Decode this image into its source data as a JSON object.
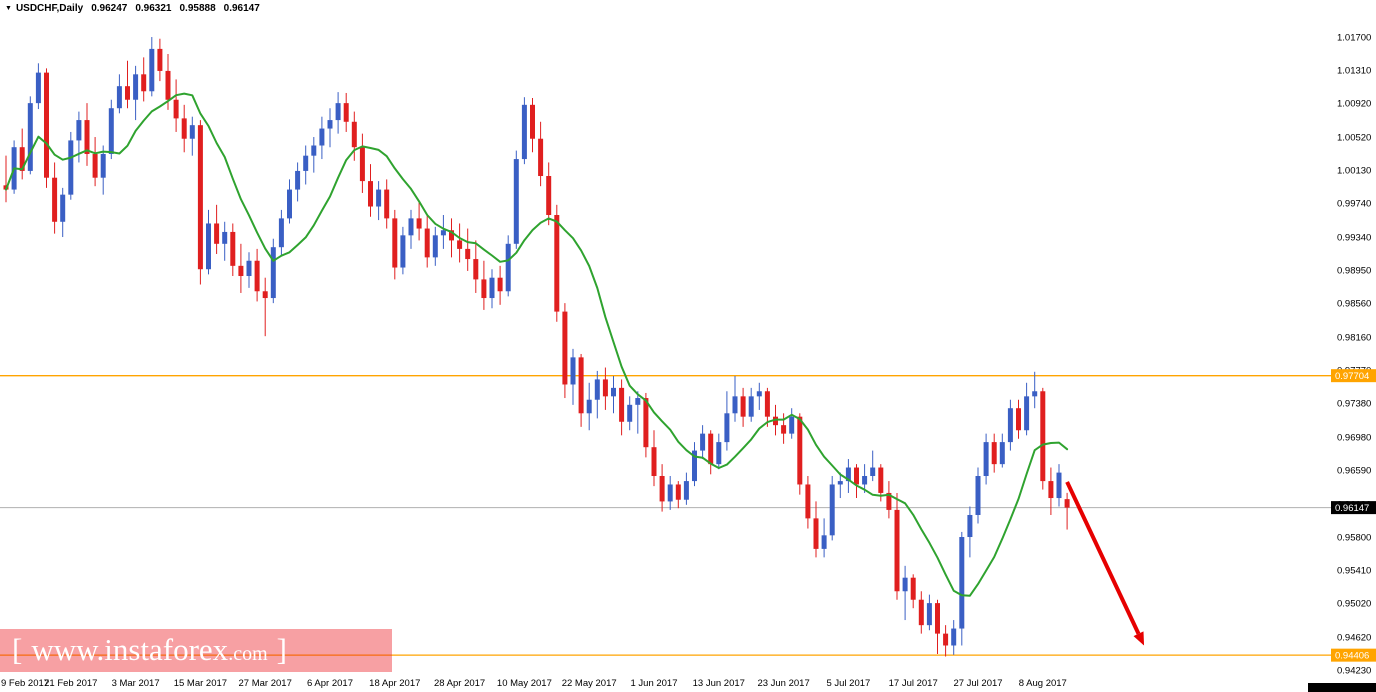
{
  "header": {
    "marker": "▼",
    "instrument": "USDCHF,Daily",
    "open": "0.96247",
    "high": "0.96321",
    "low": "0.95888",
    "close": "0.96147"
  },
  "watermark": {
    "bracket_left": "[",
    "main": "www.instaforex",
    "suffix": ".com",
    "bracket_right": "]"
  },
  "colors": {
    "up_candle": "#3A5FC4",
    "down_candle": "#E01F1F",
    "ma_line": "#2FA32F",
    "h_line": "#FFA400",
    "current_price_line": "#B0B0B0",
    "current_price_tag_bg": "#000000",
    "tag_text": "#FFFFFF",
    "axis_text": "#000000",
    "arrow": "#E60000",
    "watermark_bg": "rgba(237,28,36,0.42)"
  },
  "chart_data": {
    "type": "candlestick",
    "title": "USDCHF Daily",
    "symbol": "USDCHF",
    "timeframe": "Daily",
    "grid": "off",
    "legend": "none",
    "y_range": [
      0.9416,
      1.02137
    ],
    "y_ticks": [
      "1.01700",
      "1.01310",
      "1.00920",
      "1.00520",
      "1.00130",
      "0.99740",
      "0.99340",
      "0.98950",
      "0.98560",
      "0.98160",
      "0.97770",
      "0.97380",
      "0.96980",
      "0.96590",
      "0.96190",
      "0.95800",
      "0.95410",
      "0.95020",
      "0.94620",
      "0.94230"
    ],
    "x_ticks": [
      {
        "label": "9 Feb 2017",
        "i": 0
      },
      {
        "label": "21 Feb 2017",
        "i": 8
      },
      {
        "label": "3 Mar 2017",
        "i": 16
      },
      {
        "label": "15 Mar 2017",
        "i": 24
      },
      {
        "label": "27 Mar 2017",
        "i": 32
      },
      {
        "label": "6 Apr 2017",
        "i": 40
      },
      {
        "label": "18 Apr 2017",
        "i": 48
      },
      {
        "label": "28 Apr 2017",
        "i": 56
      },
      {
        "label": "10 May 2017",
        "i": 64
      },
      {
        "label": "22 May 2017",
        "i": 72
      },
      {
        "label": "1 Jun 2017",
        "i": 80
      },
      {
        "label": "13 Jun 2017",
        "i": 88
      },
      {
        "label": "23 Jun 2017",
        "i": 96
      },
      {
        "label": "5 Jul 2017",
        "i": 104
      },
      {
        "label": "17 Jul 2017",
        "i": 112
      },
      {
        "label": "27 Jul 2017",
        "i": 120
      },
      {
        "label": "8 Aug 2017",
        "i": 128
      }
    ],
    "candles": [
      [
        0.9995,
        1.003,
        0.9975,
        0.999
      ],
      [
        0.999,
        1.0048,
        0.9985,
        1.004
      ],
      [
        1.004,
        1.0062,
        1.0002,
        1.0012
      ],
      [
        1.0012,
        1.01,
        1.0008,
        1.0092
      ],
      [
        1.0092,
        1.0139,
        1.0085,
        1.0128
      ],
      [
        1.0128,
        1.0133,
        0.9992,
        1.0004
      ],
      [
        1.0004,
        1.0022,
        0.9938,
        0.9952
      ],
      [
        0.9952,
        0.9992,
        0.9934,
        0.9984
      ],
      [
        0.9984,
        1.0058,
        0.9978,
        1.0048
      ],
      [
        1.0048,
        1.0082,
        1.0022,
        1.0072
      ],
      [
        1.0072,
        1.0092,
        1.0018,
        1.0032
      ],
      [
        1.0032,
        1.0052,
        0.9994,
        1.0004
      ],
      [
        1.0004,
        1.0042,
        0.9984,
        1.0032
      ],
      [
        1.0032,
        1.0096,
        1.0026,
        1.0086
      ],
      [
        1.0086,
        1.0126,
        1.008,
        1.0112
      ],
      [
        1.0112,
        1.0142,
        1.0086,
        1.0096
      ],
      [
        1.0096,
        1.0136,
        1.0072,
        1.0126
      ],
      [
        1.0126,
        1.0146,
        1.0094,
        1.0106
      ],
      [
        1.0106,
        1.017,
        1.01,
        1.0156
      ],
      [
        1.0156,
        1.0168,
        1.0118,
        1.013
      ],
      [
        1.013,
        1.015,
        1.0084,
        1.0096
      ],
      [
        1.0096,
        1.012,
        1.0058,
        1.0074
      ],
      [
        1.0074,
        1.009,
        1.0034,
        1.005
      ],
      [
        1.005,
        1.0076,
        1.003,
        1.0066
      ],
      [
        1.0066,
        1.0072,
        0.9878,
        0.9896
      ],
      [
        0.9896,
        0.9966,
        0.989,
        0.995
      ],
      [
        0.995,
        0.9972,
        0.9914,
        0.9926
      ],
      [
        0.9926,
        0.9952,
        0.9906,
        0.994
      ],
      [
        0.994,
        0.995,
        0.9888,
        0.99
      ],
      [
        0.99,
        0.9926,
        0.9868,
        0.9888
      ],
      [
        0.9888,
        0.9916,
        0.9874,
        0.9906
      ],
      [
        0.9906,
        0.992,
        0.9858,
        0.987
      ],
      [
        0.987,
        0.9886,
        0.9817,
        0.9862
      ],
      [
        0.9862,
        0.9932,
        0.9856,
        0.9922
      ],
      [
        0.9922,
        0.9966,
        0.9912,
        0.9956
      ],
      [
        0.9956,
        1.0002,
        0.995,
        0.999
      ],
      [
        0.999,
        1.0022,
        0.9976,
        1.0012
      ],
      [
        1.0012,
        1.0042,
        0.9996,
        1.003
      ],
      [
        1.003,
        1.0052,
        1.001,
        1.0042
      ],
      [
        1.0042,
        1.0076,
        1.0026,
        1.0062
      ],
      [
        1.0062,
        1.0086,
        1.004,
        1.0072
      ],
      [
        1.0072,
        1.0105,
        1.0056,
        1.0092
      ],
      [
        1.0092,
        1.0104,
        1.0058,
        1.007
      ],
      [
        1.007,
        1.0082,
        1.0024,
        1.004
      ],
      [
        1.004,
        1.0056,
        0.9986,
        1.0
      ],
      [
        1.0,
        1.002,
        0.9958,
        0.997
      ],
      [
        0.997,
        1.0,
        0.9954,
        0.999
      ],
      [
        0.999,
        1.0002,
        0.9944,
        0.9956
      ],
      [
        0.9956,
        0.9966,
        0.9884,
        0.9898
      ],
      [
        0.9898,
        0.9946,
        0.989,
        0.9936
      ],
      [
        0.9936,
        0.9966,
        0.992,
        0.9956
      ],
      [
        0.9956,
        0.9976,
        0.993,
        0.9944
      ],
      [
        0.9944,
        0.996,
        0.9898,
        0.991
      ],
      [
        0.991,
        0.9946,
        0.99,
        0.9936
      ],
      [
        0.9936,
        0.996,
        0.992,
        0.9942
      ],
      [
        0.9942,
        0.9956,
        0.991,
        0.993
      ],
      [
        0.993,
        0.995,
        0.9904,
        0.992
      ],
      [
        0.992,
        0.9944,
        0.9894,
        0.9908
      ],
      [
        0.9908,
        0.993,
        0.9868,
        0.9884
      ],
      [
        0.9884,
        0.9906,
        0.9848,
        0.9862
      ],
      [
        0.9862,
        0.9896,
        0.985,
        0.9886
      ],
      [
        0.9886,
        0.99,
        0.9854,
        0.987
      ],
      [
        0.987,
        0.9936,
        0.9864,
        0.9926
      ],
      [
        0.9926,
        1.0036,
        0.992,
        1.0026
      ],
      [
        1.0026,
        1.0099,
        1.002,
        1.009
      ],
      [
        1.009,
        1.0098,
        1.0034,
        1.005
      ],
      [
        1.005,
        1.007,
        0.9994,
        1.0006
      ],
      [
        1.0006,
        1.0022,
        0.9948,
        0.996
      ],
      [
        0.996,
        0.9972,
        0.9834,
        0.9846
      ],
      [
        0.9846,
        0.9856,
        0.9744,
        0.976
      ],
      [
        0.976,
        0.9802,
        0.9736,
        0.9792
      ],
      [
        0.9792,
        0.9796,
        0.971,
        0.9726
      ],
      [
        0.9726,
        0.9762,
        0.9706,
        0.9742
      ],
      [
        0.9742,
        0.9776,
        0.972,
        0.9766
      ],
      [
        0.9766,
        0.978,
        0.973,
        0.9746
      ],
      [
        0.9746,
        0.977,
        0.9726,
        0.9756
      ],
      [
        0.9756,
        0.9766,
        0.97,
        0.9716
      ],
      [
        0.9716,
        0.9746,
        0.9706,
        0.9736
      ],
      [
        0.9736,
        0.9752,
        0.9702,
        0.9744
      ],
      [
        0.9744,
        0.975,
        0.9674,
        0.9686
      ],
      [
        0.9686,
        0.9706,
        0.964,
        0.9652
      ],
      [
        0.9652,
        0.9666,
        0.961,
        0.9622
      ],
      [
        0.9622,
        0.9652,
        0.9612,
        0.9642
      ],
      [
        0.9642,
        0.9646,
        0.9614,
        0.9624
      ],
      [
        0.9624,
        0.9656,
        0.9618,
        0.9646
      ],
      [
        0.9646,
        0.9692,
        0.964,
        0.9682
      ],
      [
        0.9682,
        0.9712,
        0.9672,
        0.9702
      ],
      [
        0.9702,
        0.9706,
        0.9654,
        0.9666
      ],
      [
        0.9666,
        0.9702,
        0.966,
        0.9692
      ],
      [
        0.9692,
        0.9752,
        0.9682,
        0.9726
      ],
      [
        0.9726,
        0.977,
        0.9716,
        0.9746
      ],
      [
        0.9746,
        0.9756,
        0.971,
        0.9722
      ],
      [
        0.9722,
        0.9756,
        0.9716,
        0.9746
      ],
      [
        0.9746,
        0.9762,
        0.973,
        0.9752
      ],
      [
        0.9752,
        0.9756,
        0.971,
        0.9722
      ],
      [
        0.9722,
        0.9736,
        0.97,
        0.9712
      ],
      [
        0.9712,
        0.9726,
        0.969,
        0.9702
      ],
      [
        0.9702,
        0.9732,
        0.9696,
        0.9722
      ],
      [
        0.9722,
        0.9726,
        0.963,
        0.9642
      ],
      [
        0.9642,
        0.9652,
        0.959,
        0.9602
      ],
      [
        0.9602,
        0.9622,
        0.9556,
        0.9566
      ],
      [
        0.9566,
        0.9602,
        0.9556,
        0.9582
      ],
      [
        0.9582,
        0.9652,
        0.9576,
        0.9642
      ],
      [
        0.9642,
        0.9656,
        0.9626,
        0.9646
      ],
      [
        0.9646,
        0.9672,
        0.9632,
        0.9662
      ],
      [
        0.9662,
        0.9666,
        0.9626,
        0.9642
      ],
      [
        0.9642,
        0.9666,
        0.9632,
        0.9652
      ],
      [
        0.9652,
        0.9682,
        0.9646,
        0.9662
      ],
      [
        0.9662,
        0.9666,
        0.9622,
        0.9632
      ],
      [
        0.9632,
        0.9646,
        0.9602,
        0.9612
      ],
      [
        0.9612,
        0.9632,
        0.9506,
        0.9516
      ],
      [
        0.9516,
        0.9546,
        0.9482,
        0.9532
      ],
      [
        0.9532,
        0.9536,
        0.9496,
        0.9506
      ],
      [
        0.9506,
        0.9516,
        0.9466,
        0.9476
      ],
      [
        0.9476,
        0.9512,
        0.947,
        0.9502
      ],
      [
        0.9502,
        0.9506,
        0.9442,
        0.9466
      ],
      [
        0.9466,
        0.9476,
        0.9439,
        0.9452
      ],
      [
        0.9452,
        0.9482,
        0.9441,
        0.9472
      ],
      [
        0.9472,
        0.9586,
        0.9452,
        0.958
      ],
      [
        0.958,
        0.9616,
        0.9556,
        0.9606
      ],
      [
        0.9606,
        0.9662,
        0.9596,
        0.9652
      ],
      [
        0.9652,
        0.9702,
        0.9642,
        0.9692
      ],
      [
        0.9692,
        0.9702,
        0.9656,
        0.9666
      ],
      [
        0.9666,
        0.9702,
        0.9662,
        0.9692
      ],
      [
        0.9692,
        0.9742,
        0.9682,
        0.9732
      ],
      [
        0.9732,
        0.9742,
        0.9696,
        0.9706
      ],
      [
        0.9706,
        0.9762,
        0.97,
        0.9746
      ],
      [
        0.9746,
        0.9775,
        0.9732,
        0.9752
      ],
      [
        0.9752,
        0.9756,
        0.9636,
        0.9646
      ],
      [
        0.9646,
        0.9662,
        0.9606,
        0.9626
      ],
      [
        0.9626,
        0.9666,
        0.9616,
        0.9656
      ],
      [
        0.96247,
        0.96321,
        0.95888,
        0.96147
      ]
    ],
    "ma": {
      "type": "sma",
      "period": 10
    },
    "h_lines": [
      {
        "name": "resistance-line",
        "price": 0.97704,
        "label": "0.97704"
      },
      {
        "name": "support-line",
        "price": 0.94406,
        "label": "0.94406"
      }
    ],
    "current_price": {
      "price": 0.96147,
      "label": "0.96147"
    },
    "arrow": {
      "index_start": 131,
      "price_start": 0.9645,
      "index_end": 140.5,
      "price_end": 0.9452
    }
  }
}
